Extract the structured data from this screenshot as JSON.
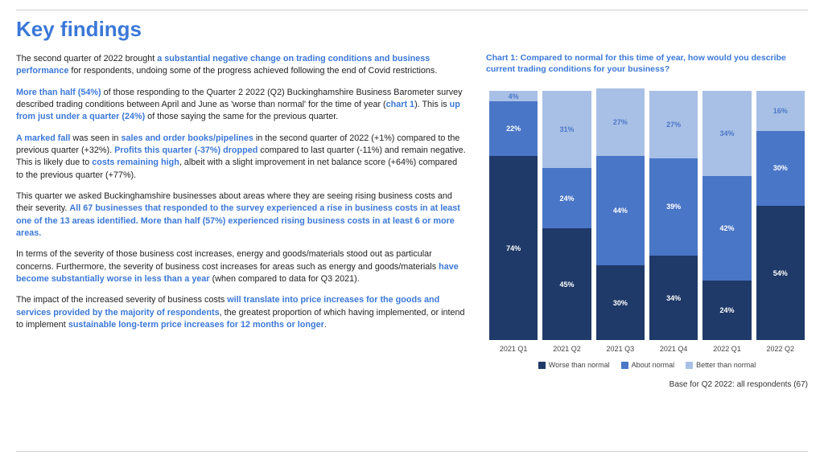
{
  "title": "Key findings",
  "paragraphs": {
    "p1a": "The second quarter of 2022 brought ",
    "p1b": "a substantial negative change on trading conditions and business performance",
    "p1c": " for respondents, undoing some of the progress achieved following the end of Covid restrictions.",
    "p2a": "More than half (54%)",
    "p2b": " of those responding to the Quarter 2 2022 (Q2) Buckinghamshire Business Barometer survey described trading conditions between April and June as 'worse than normal' for the time of year (",
    "p2c": "chart 1",
    "p2d": "). This is ",
    "p2e": "up from just under a quarter (24%)",
    "p2f": " of those saying the same for the previous quarter.",
    "p3a": "A marked fall",
    "p3b": " was seen in ",
    "p3c": "sales and order books/pipelines",
    "p3d": " in the second quarter of 2022 (+1%) compared to the previous quarter (+32%). ",
    "p3e": "Profits this quarter (-37%) dropped",
    "p3f": " compared to last quarter (-11%) and remain negative. This is likely due to ",
    "p3g": "costs remaining high",
    "p3h": ", albeit with a slight improvement in net balance score (+64%) compared to the previous quarter (+77%).",
    "p4a": "This quarter we asked Buckinghamshire businesses about areas where they are seeing rising business costs and their severity. ",
    "p4b": "All 67 businesses that responded to the survey experienced a rise in business costs in at least one of the 13 areas identified. More than half (57%) experienced rising business costs in at least 6 or more areas.",
    "p5a": "In terms of the severity of those business cost increases, energy and goods/materials stood out as particular concerns. Furthermore, the severity of business cost increases for areas such as energy and goods/materials ",
    "p5b": "have become substantially worse in less than a year",
    "p5c": " (when compared to data for Q3 2021).",
    "p6a": "The impact of the increased severity of business costs ",
    "p6b": "will translate into price increases for the goods and services provided by the majority of respondents",
    "p6c": ", the greatest proportion of which having implemented, or intend to implement ",
    "p6d": "sustainable long-term price increases for 12 months or longer",
    "p6e": "."
  },
  "chart": {
    "title": "Chart 1: Compared to normal for this time of year, how would you describe current trading conditions for your business?",
    "type": "stacked-bar",
    "categories": [
      "2021 Q1",
      "2021 Q2",
      "2021 Q3",
      "2021 Q4",
      "2022 Q1",
      "2022 Q2"
    ],
    "series_labels": [
      "Worse than normal",
      "About normal",
      "Better than normal"
    ],
    "colors": {
      "worse": "#1f3a68",
      "about": "#4a76c7",
      "better": "#a9c0e6",
      "text_light": "#4a76c7"
    },
    "data": [
      {
        "worse": 74,
        "about": 22,
        "better": 4
      },
      {
        "worse": 45,
        "about": 24,
        "better": 31
      },
      {
        "worse": 30,
        "about": 44,
        "better": 27
      },
      {
        "worse": 34,
        "about": 39,
        "better": 27
      },
      {
        "worse": 24,
        "about": 42,
        "better": 34
      },
      {
        "worse": 54,
        "about": 30,
        "better": 16
      }
    ],
    "base_note": "Base for Q2 2022: all respondents (67)"
  }
}
